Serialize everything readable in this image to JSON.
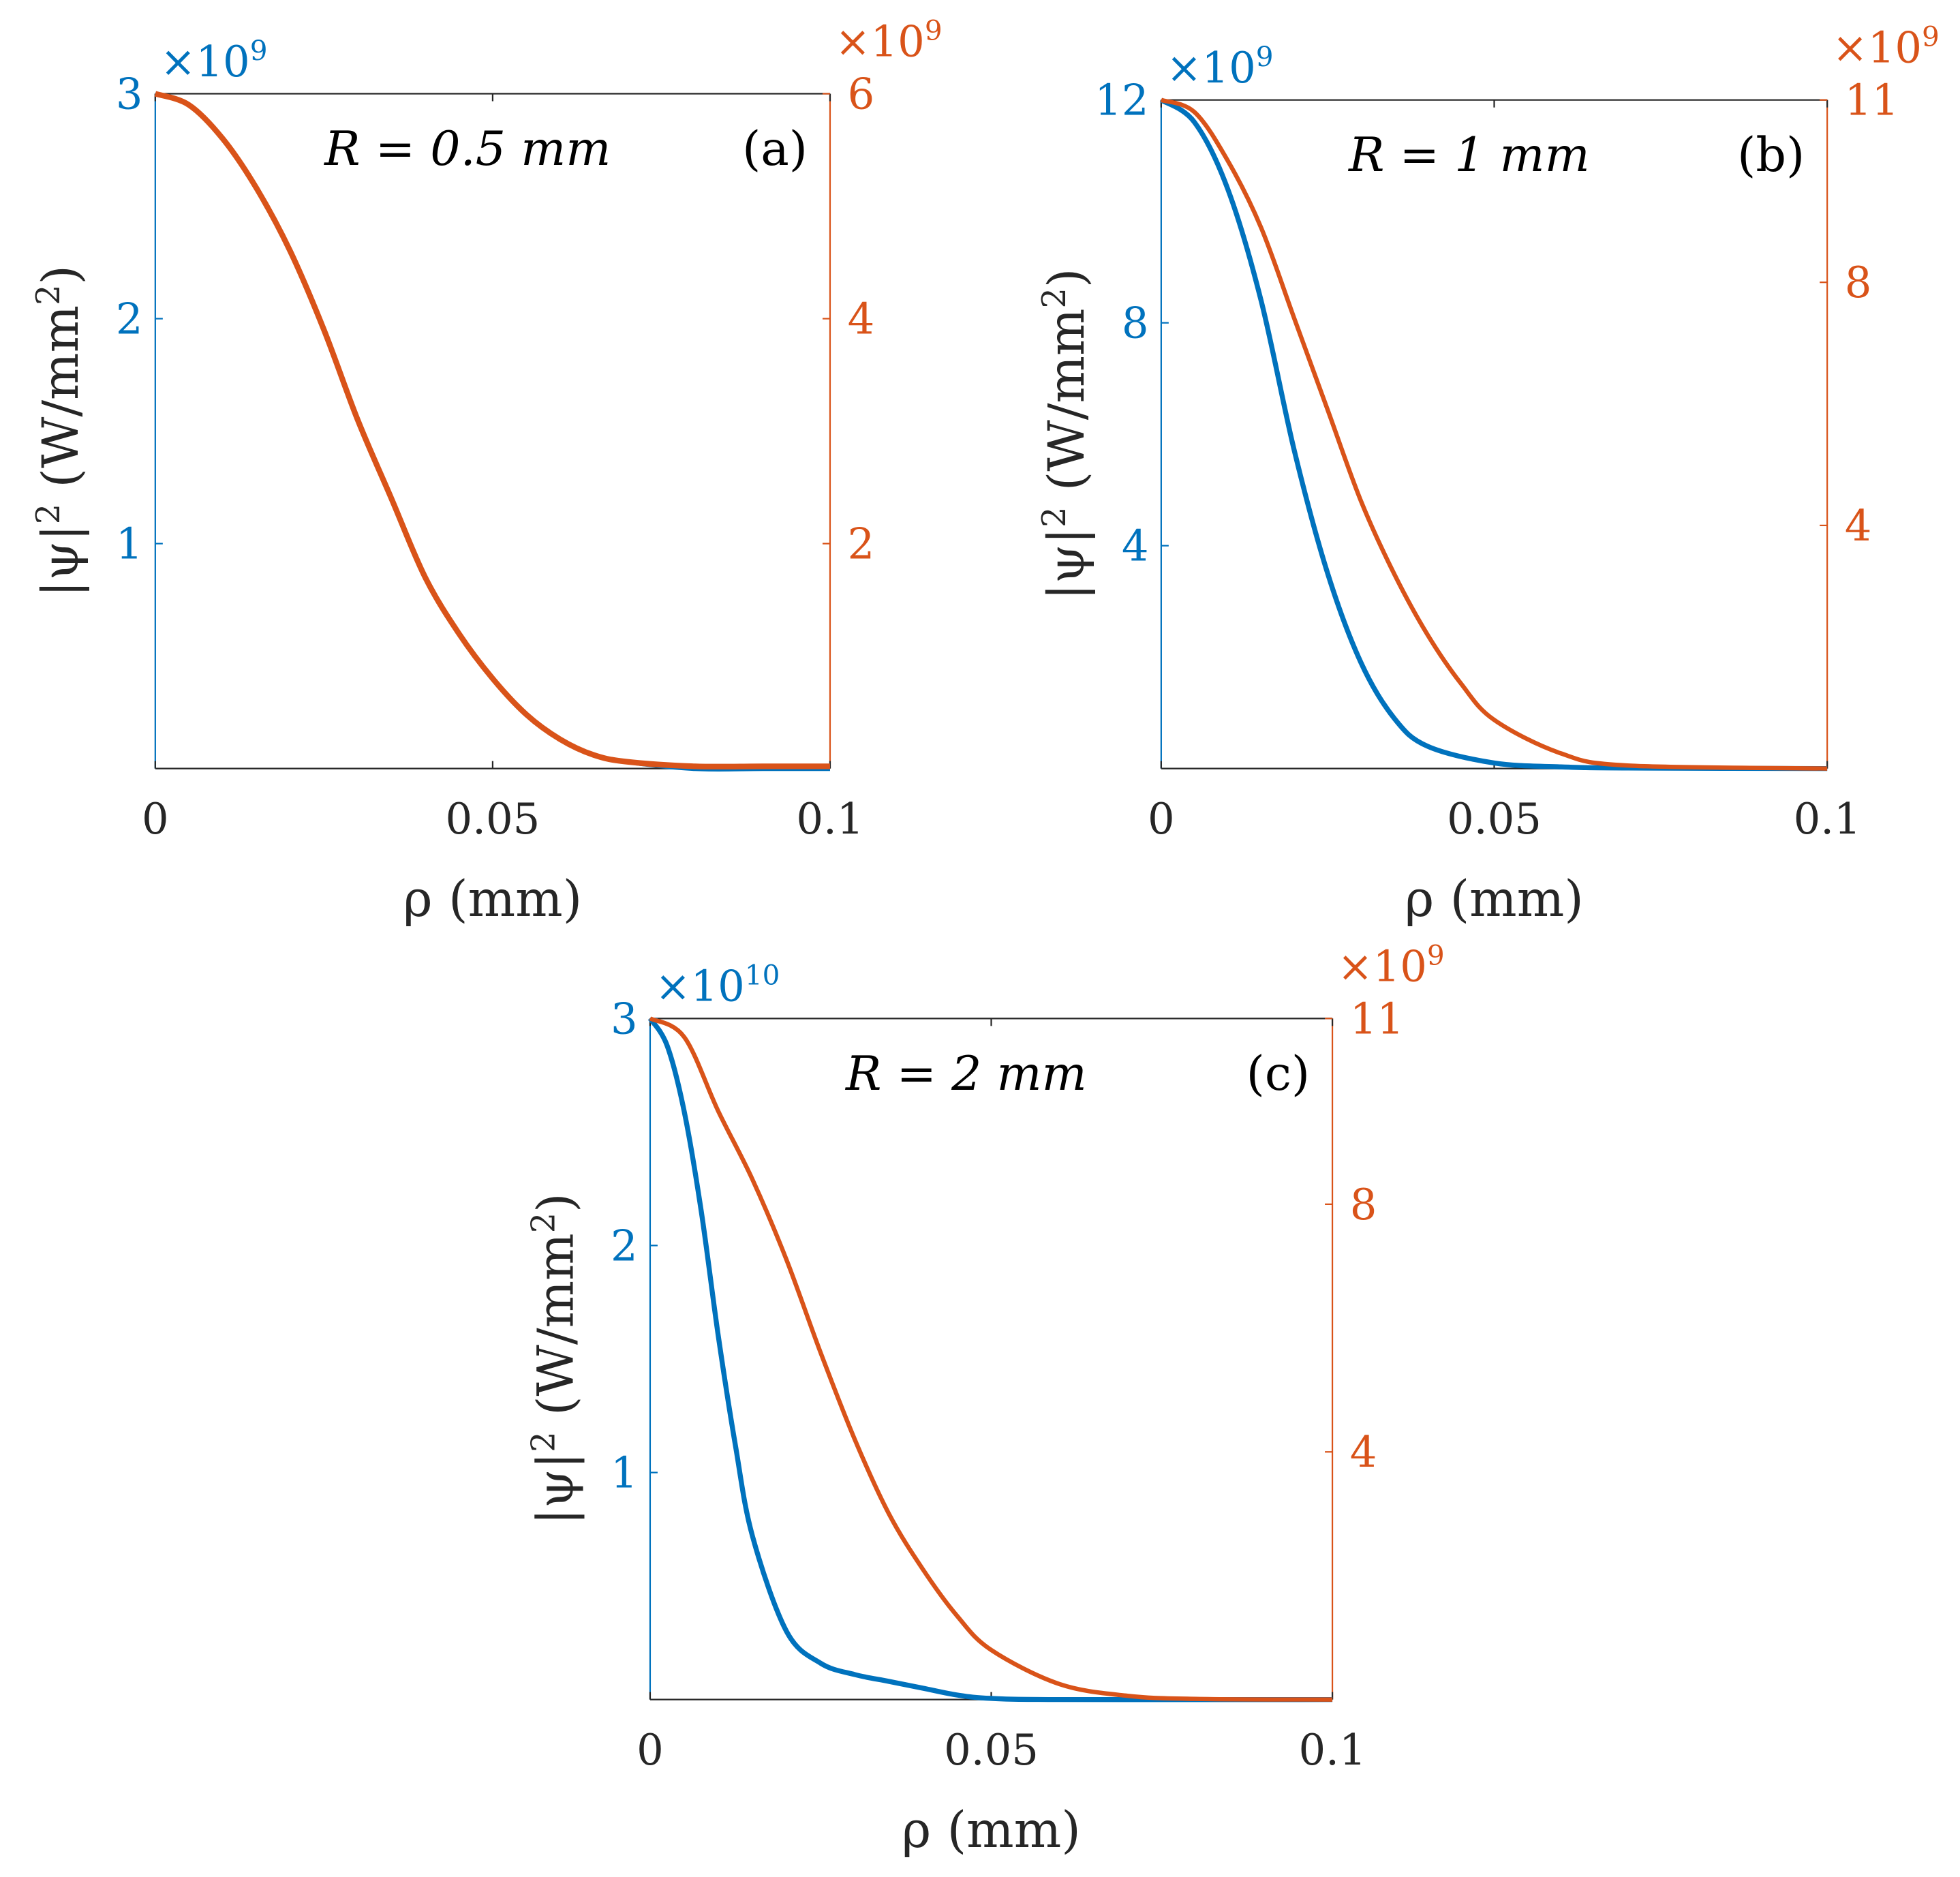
{
  "colors": {
    "left": "#0072BD",
    "right": "#D95319",
    "axis": "#262626"
  },
  "chart_data": [
    {
      "type": "line",
      "panel_label": "(a)",
      "annotation": "R = 0.5 mm",
      "xlabel": "ρ (mm)",
      "ylabel_base": "|ψ|",
      "ylabel_exp": "2",
      "ylabel_unit": " (W/mm",
      "ylabel_unit_exp": "2",
      "ylabel_close": ")",
      "xlim": [
        0,
        0.1
      ],
      "xticks": [
        "0",
        "0.05",
        "0.1"
      ],
      "xtick_values": [
        0,
        0.05,
        0.1
      ],
      "left_axis": {
        "ylim": [
          0,
          3
        ],
        "ticks": [
          1,
          2,
          3
        ],
        "tick_labels": [
          "1",
          "2",
          "3"
        ],
        "multiplier": "×10",
        "multiplier_exp": "9"
      },
      "right_axis": {
        "ylim": [
          0,
          6
        ],
        "ticks": [
          2,
          4,
          6
        ],
        "tick_labels": [
          "2",
          "4",
          "6"
        ],
        "multiplier": "×10",
        "multiplier_exp": "9"
      },
      "series": [
        {
          "name": "left",
          "axis": "left",
          "x": [
            0,
            0.005,
            0.01,
            0.015,
            0.02,
            0.025,
            0.03,
            0.035,
            0.04,
            0.045,
            0.05,
            0.055,
            0.06,
            0.065,
            0.07,
            0.08,
            0.09,
            0.1
          ],
          "y": [
            3.0,
            2.95,
            2.8,
            2.58,
            2.3,
            1.95,
            1.55,
            1.2,
            0.85,
            0.6,
            0.4,
            0.24,
            0.13,
            0.06,
            0.03,
            0.0,
            0.0,
            0.0
          ]
        },
        {
          "name": "right",
          "axis": "right",
          "x": [
            0,
            0.005,
            0.01,
            0.015,
            0.02,
            0.025,
            0.03,
            0.035,
            0.04,
            0.045,
            0.05,
            0.055,
            0.06,
            0.065,
            0.07,
            0.08,
            0.09,
            0.1
          ],
          "y": [
            6.0,
            5.9,
            5.6,
            5.16,
            4.6,
            3.9,
            3.1,
            2.4,
            1.7,
            1.2,
            0.8,
            0.48,
            0.26,
            0.12,
            0.06,
            0.02,
            0.02,
            0.02
          ]
        }
      ]
    },
    {
      "type": "line",
      "panel_label": "(b)",
      "annotation": "R = 1 mm",
      "xlabel": "ρ (mm)",
      "ylabel_base": "|ψ|",
      "ylabel_exp": "2",
      "ylabel_unit": " (W/mm",
      "ylabel_unit_exp": "2",
      "ylabel_close": ")",
      "xlim": [
        0,
        0.1
      ],
      "xticks": [
        "0",
        "0.05",
        "0.1"
      ],
      "xtick_values": [
        0,
        0.05,
        0.1
      ],
      "left_axis": {
        "ylim": [
          0,
          12
        ],
        "ticks": [
          4,
          8,
          12
        ],
        "tick_labels": [
          "4",
          "8",
          "12"
        ],
        "multiplier": "×10",
        "multiplier_exp": "9"
      },
      "right_axis": {
        "ylim": [
          0,
          11
        ],
        "ticks": [
          4,
          8,
          11
        ],
        "tick_labels": [
          "4",
          "8",
          "11"
        ],
        "multiplier": "×10",
        "multiplier_exp": "9"
      },
      "series": [
        {
          "name": "left",
          "axis": "left",
          "x": [
            0,
            0.005,
            0.01,
            0.015,
            0.02,
            0.025,
            0.03,
            0.035,
            0.04,
            0.05,
            0.06,
            0.07,
            0.1
          ],
          "y": [
            12.0,
            11.6,
            10.4,
            8.4,
            5.7,
            3.5,
            1.9,
            0.9,
            0.4,
            0.1,
            0.03,
            0.01,
            0.0
          ]
        },
        {
          "name": "right",
          "axis": "right",
          "x": [
            0,
            0.005,
            0.01,
            0.015,
            0.02,
            0.025,
            0.03,
            0.035,
            0.04,
            0.045,
            0.05,
            0.06,
            0.07,
            0.1
          ],
          "y": [
            11.0,
            10.8,
            10.0,
            8.9,
            7.4,
            5.9,
            4.4,
            3.2,
            2.2,
            1.4,
            0.8,
            0.25,
            0.05,
            0.0
          ]
        }
      ]
    },
    {
      "type": "line",
      "panel_label": "(c)",
      "annotation": "R = 2 mm",
      "xlabel": "ρ (mm)",
      "ylabel_base": "|ψ|",
      "ylabel_exp": "2",
      "ylabel_unit": " (W/mm",
      "ylabel_unit_exp": "2",
      "ylabel_close": ")",
      "xlim": [
        0,
        0.1
      ],
      "xticks": [
        "0",
        "0.05",
        "0.1"
      ],
      "xtick_values": [
        0,
        0.05,
        0.1
      ],
      "left_axis": {
        "ylim": [
          0,
          3
        ],
        "ticks": [
          1,
          2,
          3
        ],
        "tick_labels": [
          "1",
          "2",
          "3"
        ],
        "multiplier": "×10",
        "multiplier_exp": "10"
      },
      "right_axis": {
        "ylim": [
          0,
          11
        ],
        "ticks": [
          4,
          8,
          11
        ],
        "tick_labels": [
          "4",
          "8",
          "11"
        ],
        "multiplier": "×10",
        "multiplier_exp": "9"
      },
      "series": [
        {
          "name": "left",
          "axis": "left",
          "x": [
            0,
            0.0025,
            0.005,
            0.0075,
            0.01,
            0.0125,
            0.015,
            0.02,
            0.025,
            0.03,
            0.035,
            0.04,
            0.045,
            0.05,
            0.06,
            0.1
          ],
          "y": [
            3.0,
            2.88,
            2.59,
            2.15,
            1.6,
            1.12,
            0.72,
            0.3,
            0.16,
            0.11,
            0.08,
            0.05,
            0.02,
            0.005,
            0.0,
            0.0
          ]
        },
        {
          "name": "right",
          "axis": "right",
          "x": [
            0,
            0.005,
            0.01,
            0.015,
            0.02,
            0.025,
            0.03,
            0.035,
            0.04,
            0.045,
            0.05,
            0.06,
            0.07,
            0.08,
            0.1
          ],
          "y": [
            11.0,
            10.7,
            9.5,
            8.4,
            7.1,
            5.6,
            4.2,
            3.0,
            2.1,
            1.35,
            0.8,
            0.25,
            0.06,
            0.01,
            0.0
          ]
        }
      ]
    }
  ]
}
